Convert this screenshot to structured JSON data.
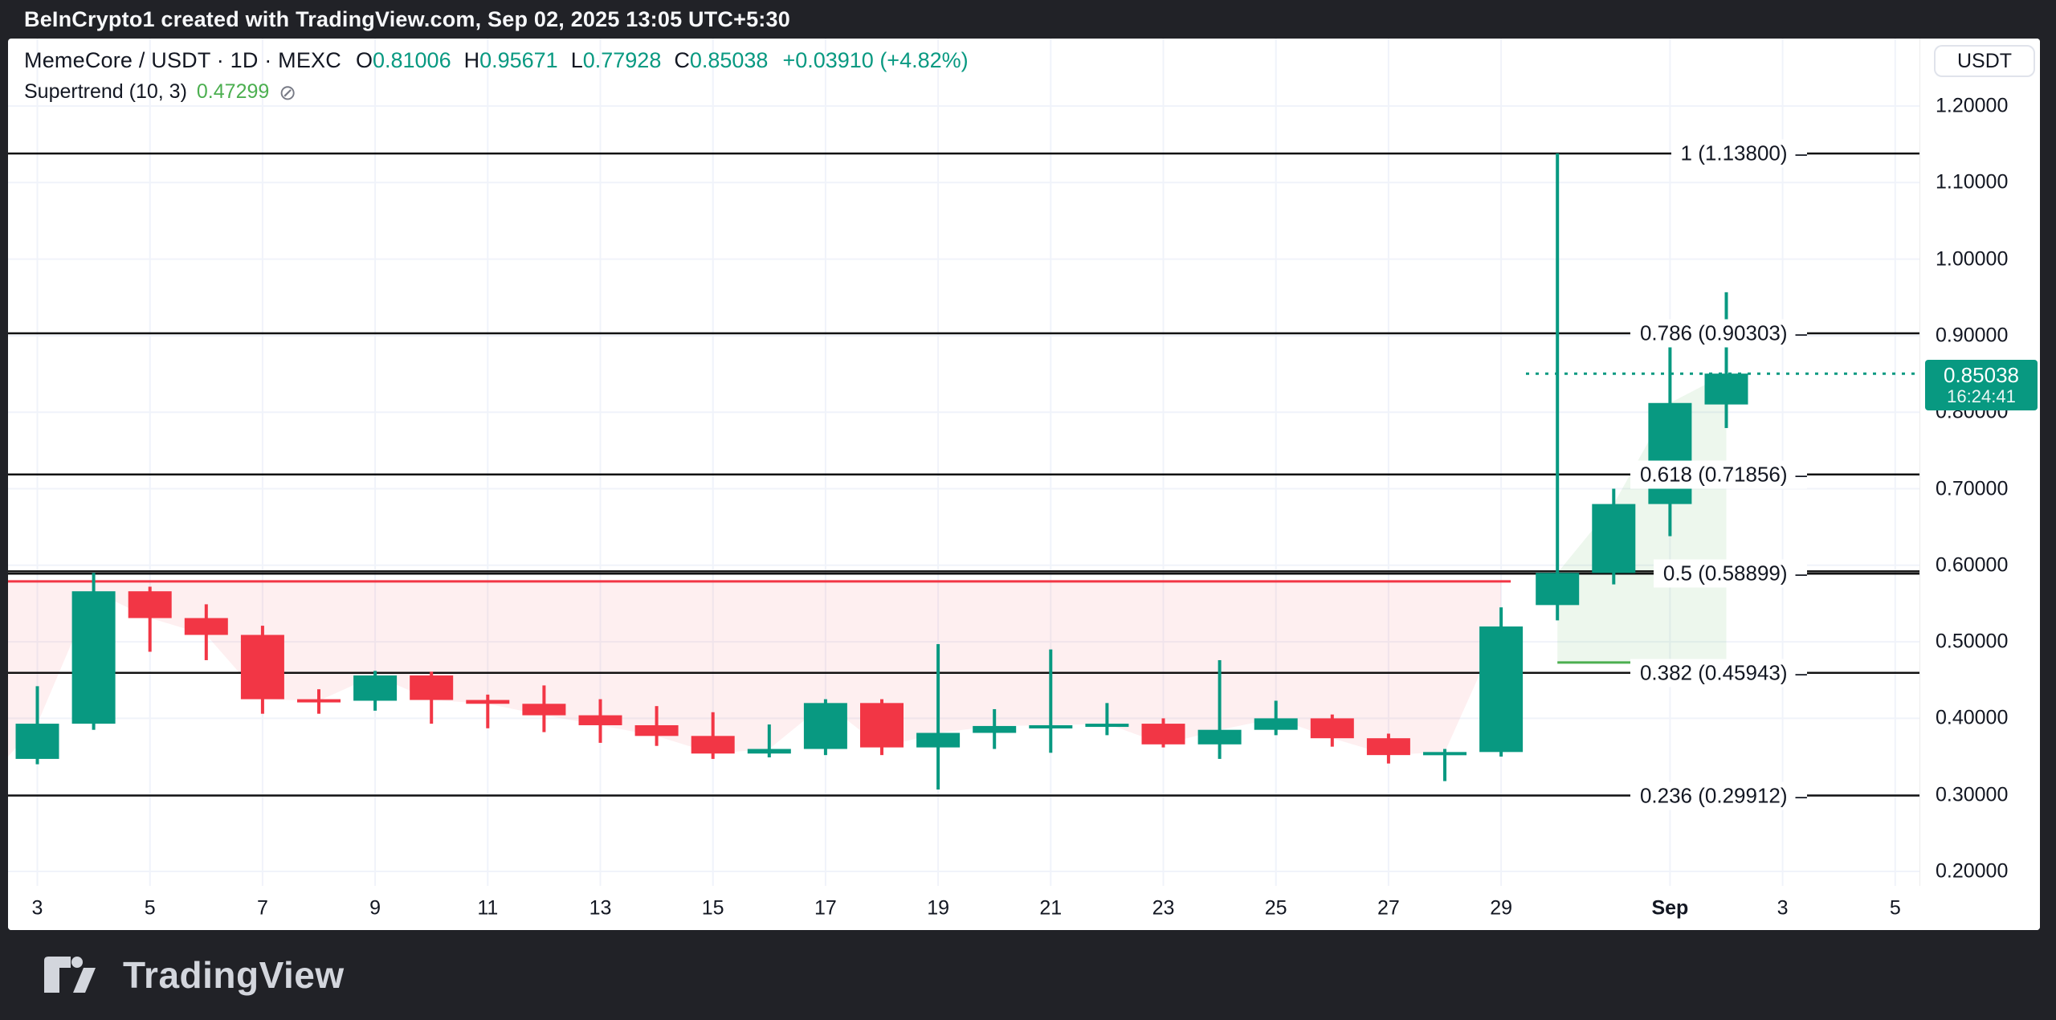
{
  "top_bar": {
    "attribution": "BeInCrypto1 created with TradingView.com, Sep 02, 2025 13:05 UTC+5:30"
  },
  "header": {
    "symbol_line": {
      "title": "MemeCore / USDT · 1D · MEXC",
      "ohlc": [
        {
          "label": "O",
          "value": "0.81006"
        },
        {
          "label": "H",
          "value": "0.95671"
        },
        {
          "label": "L",
          "value": "0.77928"
        },
        {
          "label": "C",
          "value": "0.85038"
        }
      ],
      "change": "+0.03910 (+4.82%)"
    },
    "indicator_line": {
      "name": "Supertrend (10, 3)",
      "value": "0.47299",
      "hidden_icon": "⊘"
    }
  },
  "price_axis": {
    "currency_button": "USDT",
    "ticks": [
      {
        "label": "1.20000",
        "value": 1.2
      },
      {
        "label": "1.10000",
        "value": 1.1
      },
      {
        "label": "1.00000",
        "value": 1.0
      },
      {
        "label": "0.90000",
        "value": 0.9
      },
      {
        "label": "0.80000",
        "value": 0.8
      },
      {
        "label": "0.70000",
        "value": 0.7
      },
      {
        "label": "0.60000",
        "value": 0.6
      },
      {
        "label": "0.50000",
        "value": 0.5
      },
      {
        "label": "0.40000",
        "value": 0.4
      },
      {
        "label": "0.30000",
        "value": 0.3
      },
      {
        "label": "0.20000",
        "value": 0.2
      }
    ],
    "last_price_badge": {
      "price": "0.85038",
      "countdown": "16:24:41",
      "color": "#089981"
    }
  },
  "time_axis": {
    "ticks": [
      {
        "label": "3",
        "day": 0
      },
      {
        "label": "5",
        "day": 2
      },
      {
        "label": "7",
        "day": 4
      },
      {
        "label": "9",
        "day": 6
      },
      {
        "label": "11",
        "day": 8
      },
      {
        "label": "13",
        "day": 10
      },
      {
        "label": "15",
        "day": 12
      },
      {
        "label": "17",
        "day": 14
      },
      {
        "label": "19",
        "day": 16
      },
      {
        "label": "21",
        "day": 18
      },
      {
        "label": "23",
        "day": 20
      },
      {
        "label": "25",
        "day": 22
      },
      {
        "label": "27",
        "day": 24
      },
      {
        "label": "29",
        "day": 26
      },
      {
        "label": "Sep",
        "day": 29,
        "bold": true
      },
      {
        "label": "3",
        "day": 31
      },
      {
        "label": "5",
        "day": 33
      }
    ]
  },
  "chart_data": {
    "type": "candlestick",
    "title": "MemeCore / USDT",
    "interval": "1D",
    "exchange": "MEXC",
    "ylim": [
      0.181,
      1.288
    ],
    "grid": true,
    "colors": {
      "up": "#089981",
      "down": "#f23645",
      "supertrend_down_line": "#f23645",
      "supertrend_down_fill": "rgba(242,54,69,0.08)",
      "supertrend_up_line": "#4caf50",
      "supertrend_up_fill": "rgba(76,175,80,0.10)",
      "fib_line": "#111111",
      "grid_line": "#f0f3fa",
      "last_price_line": "#089981"
    },
    "candles": [
      {
        "date": "Aug 3",
        "o": 0.347,
        "h": 0.442,
        "l": 0.34,
        "c": 0.393
      },
      {
        "date": "Aug 4",
        "o": 0.393,
        "h": 0.59,
        "l": 0.385,
        "c": 0.566
      },
      {
        "date": "Aug 5",
        "o": 0.566,
        "h": 0.572,
        "l": 0.487,
        "c": 0.531
      },
      {
        "date": "Aug 6",
        "o": 0.531,
        "h": 0.549,
        "l": 0.476,
        "c": 0.509
      },
      {
        "date": "Aug 7",
        "o": 0.509,
        "h": 0.521,
        "l": 0.406,
        "c": 0.425
      },
      {
        "date": "Aug 8",
        "o": 0.425,
        "h": 0.438,
        "l": 0.406,
        "c": 0.423
      },
      {
        "date": "Aug 9",
        "o": 0.423,
        "h": 0.462,
        "l": 0.41,
        "c": 0.456
      },
      {
        "date": "Aug 10",
        "o": 0.456,
        "h": 0.461,
        "l": 0.393,
        "c": 0.424
      },
      {
        "date": "Aug 11",
        "o": 0.424,
        "h": 0.431,
        "l": 0.387,
        "c": 0.419
      },
      {
        "date": "Aug 12",
        "o": 0.419,
        "h": 0.443,
        "l": 0.382,
        "c": 0.404
      },
      {
        "date": "Aug 13",
        "o": 0.404,
        "h": 0.425,
        "l": 0.368,
        "c": 0.391
      },
      {
        "date": "Aug 14",
        "o": 0.391,
        "h": 0.416,
        "l": 0.364,
        "c": 0.377
      },
      {
        "date": "Aug 15",
        "o": 0.377,
        "h": 0.408,
        "l": 0.347,
        "c": 0.354
      },
      {
        "date": "Aug 16",
        "o": 0.354,
        "h": 0.392,
        "l": 0.349,
        "c": 0.36
      },
      {
        "date": "Aug 17",
        "o": 0.36,
        "h": 0.425,
        "l": 0.352,
        "c": 0.42
      },
      {
        "date": "Aug 18",
        "o": 0.42,
        "h": 0.425,
        "l": 0.352,
        "c": 0.362
      },
      {
        "date": "Aug 19",
        "o": 0.362,
        "h": 0.497,
        "l": 0.307,
        "c": 0.381
      },
      {
        "date": "Aug 20",
        "o": 0.381,
        "h": 0.412,
        "l": 0.36,
        "c": 0.39
      },
      {
        "date": "Aug 21",
        "o": 0.39,
        "h": 0.49,
        "l": 0.355,
        "c": 0.391
      },
      {
        "date": "Aug 22",
        "o": 0.391,
        "h": 0.42,
        "l": 0.378,
        "c": 0.393
      },
      {
        "date": "Aug 23",
        "o": 0.393,
        "h": 0.4,
        "l": 0.362,
        "c": 0.366
      },
      {
        "date": "Aug 24",
        "o": 0.366,
        "h": 0.476,
        "l": 0.347,
        "c": 0.385
      },
      {
        "date": "Aug 25",
        "o": 0.385,
        "h": 0.423,
        "l": 0.378,
        "c": 0.4
      },
      {
        "date": "Aug 26",
        "o": 0.4,
        "h": 0.405,
        "l": 0.363,
        "c": 0.374
      },
      {
        "date": "Aug 27",
        "o": 0.374,
        "h": 0.38,
        "l": 0.341,
        "c": 0.352
      },
      {
        "date": "Aug 28",
        "o": 0.352,
        "h": 0.36,
        "l": 0.318,
        "c": 0.356
      },
      {
        "date": "Aug 29",
        "o": 0.356,
        "h": 0.545,
        "l": 0.35,
        "c": 0.52
      },
      {
        "date": "Aug 30",
        "o": 0.548,
        "h": 1.138,
        "l": 0.528,
        "c": 0.59
      },
      {
        "date": "Aug 31",
        "o": 0.59,
        "h": 0.7,
        "l": 0.575,
        "c": 0.68
      },
      {
        "date": "Sep 1",
        "o": 0.68,
        "h": 0.911,
        "l": 0.638,
        "c": 0.812
      },
      {
        "date": "Sep 2",
        "o": 0.81006,
        "h": 0.95671,
        "l": 0.77928,
        "c": 0.85038
      }
    ],
    "fib_levels": [
      {
        "ratio": "1",
        "value": 1.138,
        "text": "1 (1.13800)"
      },
      {
        "ratio": "0.786",
        "value": 0.90303,
        "text": "0.786 (0.90303)"
      },
      {
        "ratio": "0.618",
        "value": 0.71856,
        "text": "0.618 (0.71856)"
      },
      {
        "ratio": "0.5",
        "value": 0.58899,
        "text": "0.5 (0.58899)"
      },
      {
        "ratio": "0.382",
        "value": 0.45943,
        "text": "0.382 (0.45943)"
      },
      {
        "ratio": "0.236",
        "value": 0.29912,
        "text": "0.236 (0.29912)"
      }
    ],
    "fib_tick_dash": "–",
    "drawn_horizontal_line": {
      "value": 0.592
    },
    "supertrend": {
      "down": {
        "value": 0.579,
        "start_day": 0,
        "end_day": 26,
        "left_edge_close": 0.35
      },
      "up": {
        "value": 0.47299,
        "start_day": 27,
        "end_day": 30
      }
    },
    "last_price": 0.85038
  },
  "footer": {
    "logo_text": "TradingView"
  }
}
